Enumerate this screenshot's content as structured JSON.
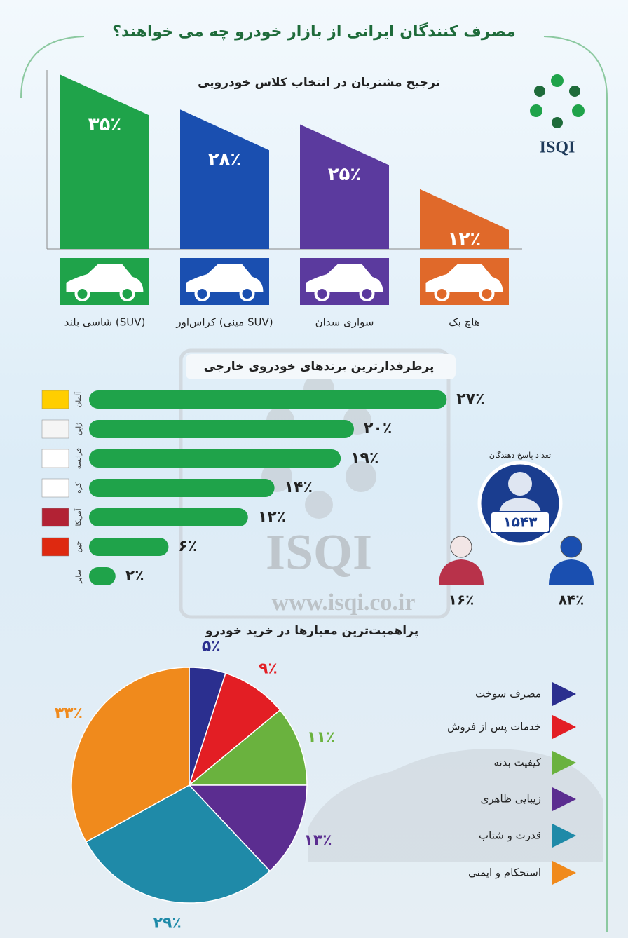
{
  "header": {
    "title": "مصرف کنندگان ایرانی از بازار خودرو چه می خواهند؟",
    "logo": "ISQI",
    "watermark": [
      "ISQI",
      "www.isqi.co.ir"
    ]
  },
  "chart_data": [
    {
      "type": "bar",
      "title": "ترجیح مشتریان در انتخاب کلاس خودرویی",
      "categories": [
        "شاسی بلند (SUV)",
        "کراس‌اور (مینی SUV)",
        "سواری سدان",
        "هاچ بک"
      ],
      "values": [
        35,
        28,
        25,
        12
      ],
      "value_labels": [
        "۳۵٪",
        "۲۸٪",
        "۲۵٪",
        "۱۲٪"
      ],
      "colors": [
        "#1fa34a",
        "#1a4fb0",
        "#5b3a9e",
        "#e0692a"
      ]
    },
    {
      "type": "hbar",
      "title": "پرطرفدارترین برندهای خودروی خارجی",
      "categories": [
        "آلمان",
        "ژاپن",
        "فرانسه",
        "کره",
        "آمریکا",
        "چین",
        "سایر"
      ],
      "values": [
        27,
        20,
        19,
        14,
        12,
        6,
        2
      ],
      "value_labels": [
        "۲۷٪",
        "۲۰٪",
        "۱۹٪",
        "۱۴٪",
        "۱۲٪",
        "۶٪",
        "۲٪"
      ],
      "color": "#1fa34a"
    },
    {
      "type": "respondents",
      "title": "تعداد پاسخ دهندگان",
      "total": 1543,
      "total_label": "۱۵۴۳",
      "values": [
        16,
        84
      ],
      "value_labels": [
        "۱۶٪",
        "۸۴٪"
      ],
      "colors": [
        "#b8324a",
        "#1a4fb0"
      ]
    },
    {
      "type": "pie",
      "title": "پراهمیت‌ترین معیارها در خرید خودرو",
      "categories": [
        "مصرف سوخت",
        "خدمات پس از فروش",
        "کیفیت بدنه",
        "زیبایی ظاهری",
        "قدرت و شتاب",
        "استحکام و ایمنی"
      ],
      "values": [
        5,
        9,
        11,
        13,
        29,
        33
      ],
      "value_labels": [
        "۵٪",
        "۹٪",
        "۱۱٪",
        "۱۳٪",
        "۲۹٪",
        "۳۳٪"
      ],
      "colors": [
        "#2b2f8f",
        "#e31e24",
        "#6ab23e",
        "#5b2d90",
        "#1f8aa8",
        "#f08a1c"
      ]
    }
  ]
}
